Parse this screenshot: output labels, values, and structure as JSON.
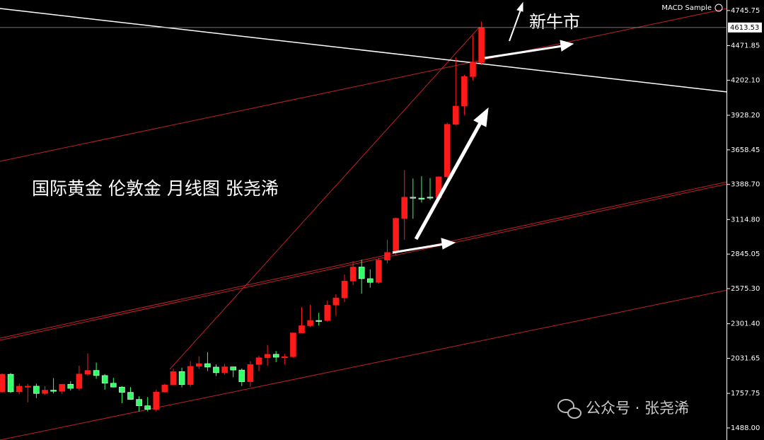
{
  "chart_data": {
    "type": "candlestick",
    "title": "国际黄金 伦敦金 月线图 张尧浠",
    "annotation": "新牛市",
    "indicator": "MACD Sample",
    "watermark": "公众号 · 张尧浠",
    "current_price": 4613.53,
    "up_color": "#ff1a1a",
    "down_color": "#33ff66",
    "ylim": [
      1394,
      4828
    ],
    "yticks": [
      {
        "value": 1488,
        "label": "1488.00"
      },
      {
        "value": 1757.75,
        "label": "1757.75"
      },
      {
        "value": 2031.65,
        "label": "2031.65"
      },
      {
        "value": 2301.4,
        "label": "2301.40"
      },
      {
        "value": 2575.3,
        "label": "2575.30"
      },
      {
        "value": 2845.05,
        "label": "2845.05"
      },
      {
        "value": 3114.8,
        "label": "3114.80"
      },
      {
        "value": 3388.7,
        "label": "3388.70"
      },
      {
        "value": 3658.45,
        "label": "3658.45"
      },
      {
        "value": 3928.2,
        "label": "3928.20"
      },
      {
        "value": 4202.1,
        "label": "4202.10"
      },
      {
        "value": 4471.85,
        "label": "4471.85"
      },
      {
        "value": 4745.75,
        "label": "4745.75"
      }
    ],
    "open": [
      1769,
      1907,
      1770,
      1814,
      1814,
      1757,
      1783,
      1774,
      1829,
      1797,
      1909,
      1937,
      1897,
      1837,
      1807,
      1766,
      1711,
      1661,
      1633,
      1768,
      1824,
      1928,
      1826,
      1969,
      1990,
      1963,
      1919,
      1965,
      1940,
      1849,
      1983,
      2036,
      2063,
      2040,
      2044,
      2230,
      2286,
      2327,
      2326,
      2447,
      2503,
      2634,
      2744,
      2653,
      2624,
      2798,
      2858,
      3124,
      3289,
      3282,
      3290,
      3285,
      3448,
      3858,
      4000,
      4230,
      4340
    ],
    "high": [
      1913,
      1917,
      1834,
      1832,
      1834,
      1814,
      1877,
      1831,
      1853,
      1974,
      2070,
      1998,
      1909,
      1879,
      1814,
      1807,
      1735,
      1730,
      1786,
      1833,
      1949,
      1959,
      2009,
      2048,
      2079,
      1985,
      1987,
      1966,
      1953,
      2009,
      2052,
      2135,
      2088,
      2066,
      2223,
      2431,
      2450,
      2387,
      2483,
      2531,
      2685,
      2790,
      2801,
      2726,
      2817,
      2956,
      3128,
      3500,
      3435,
      3452,
      3439,
      3452,
      3871,
      4381,
      4245,
      4550,
      4660
    ],
    "low": [
      1765,
      1761,
      1751,
      1688,
      1721,
      1746,
      1758,
      1753,
      1780,
      1781,
      1895,
      1872,
      1787,
      1805,
      1681,
      1709,
      1615,
      1617,
      1616,
      1765,
      1823,
      1805,
      1810,
      1949,
      1932,
      1893,
      1903,
      1884,
      1815,
      1810,
      1931,
      1973,
      2002,
      1984,
      2039,
      2228,
      2277,
      2286,
      2318,
      2364,
      2471,
      2603,
      2536,
      2583,
      2614,
      2772,
      2832,
      2957,
      3121,
      3247,
      3268,
      3268,
      3436,
      3850,
      3930,
      4200,
      4320
    ],
    "close": [
      1907,
      1770,
      1814,
      1814,
      1757,
      1783,
      1774,
      1829,
      1797,
      1909,
      1937,
      1897,
      1837,
      1807,
      1766,
      1711,
      1661,
      1633,
      1768,
      1824,
      1928,
      1826,
      1969,
      1990,
      1963,
      1919,
      1965,
      1940,
      1849,
      1983,
      2036,
      2063,
      2040,
      2044,
      2230,
      2286,
      2327,
      2326,
      2447,
      2503,
      2634,
      2744,
      2653,
      2624,
      2798,
      2858,
      3124,
      3289,
      3282,
      3274,
      3285,
      3448,
      3858,
      4000,
      4230,
      4340,
      4613.53
    ]
  }
}
